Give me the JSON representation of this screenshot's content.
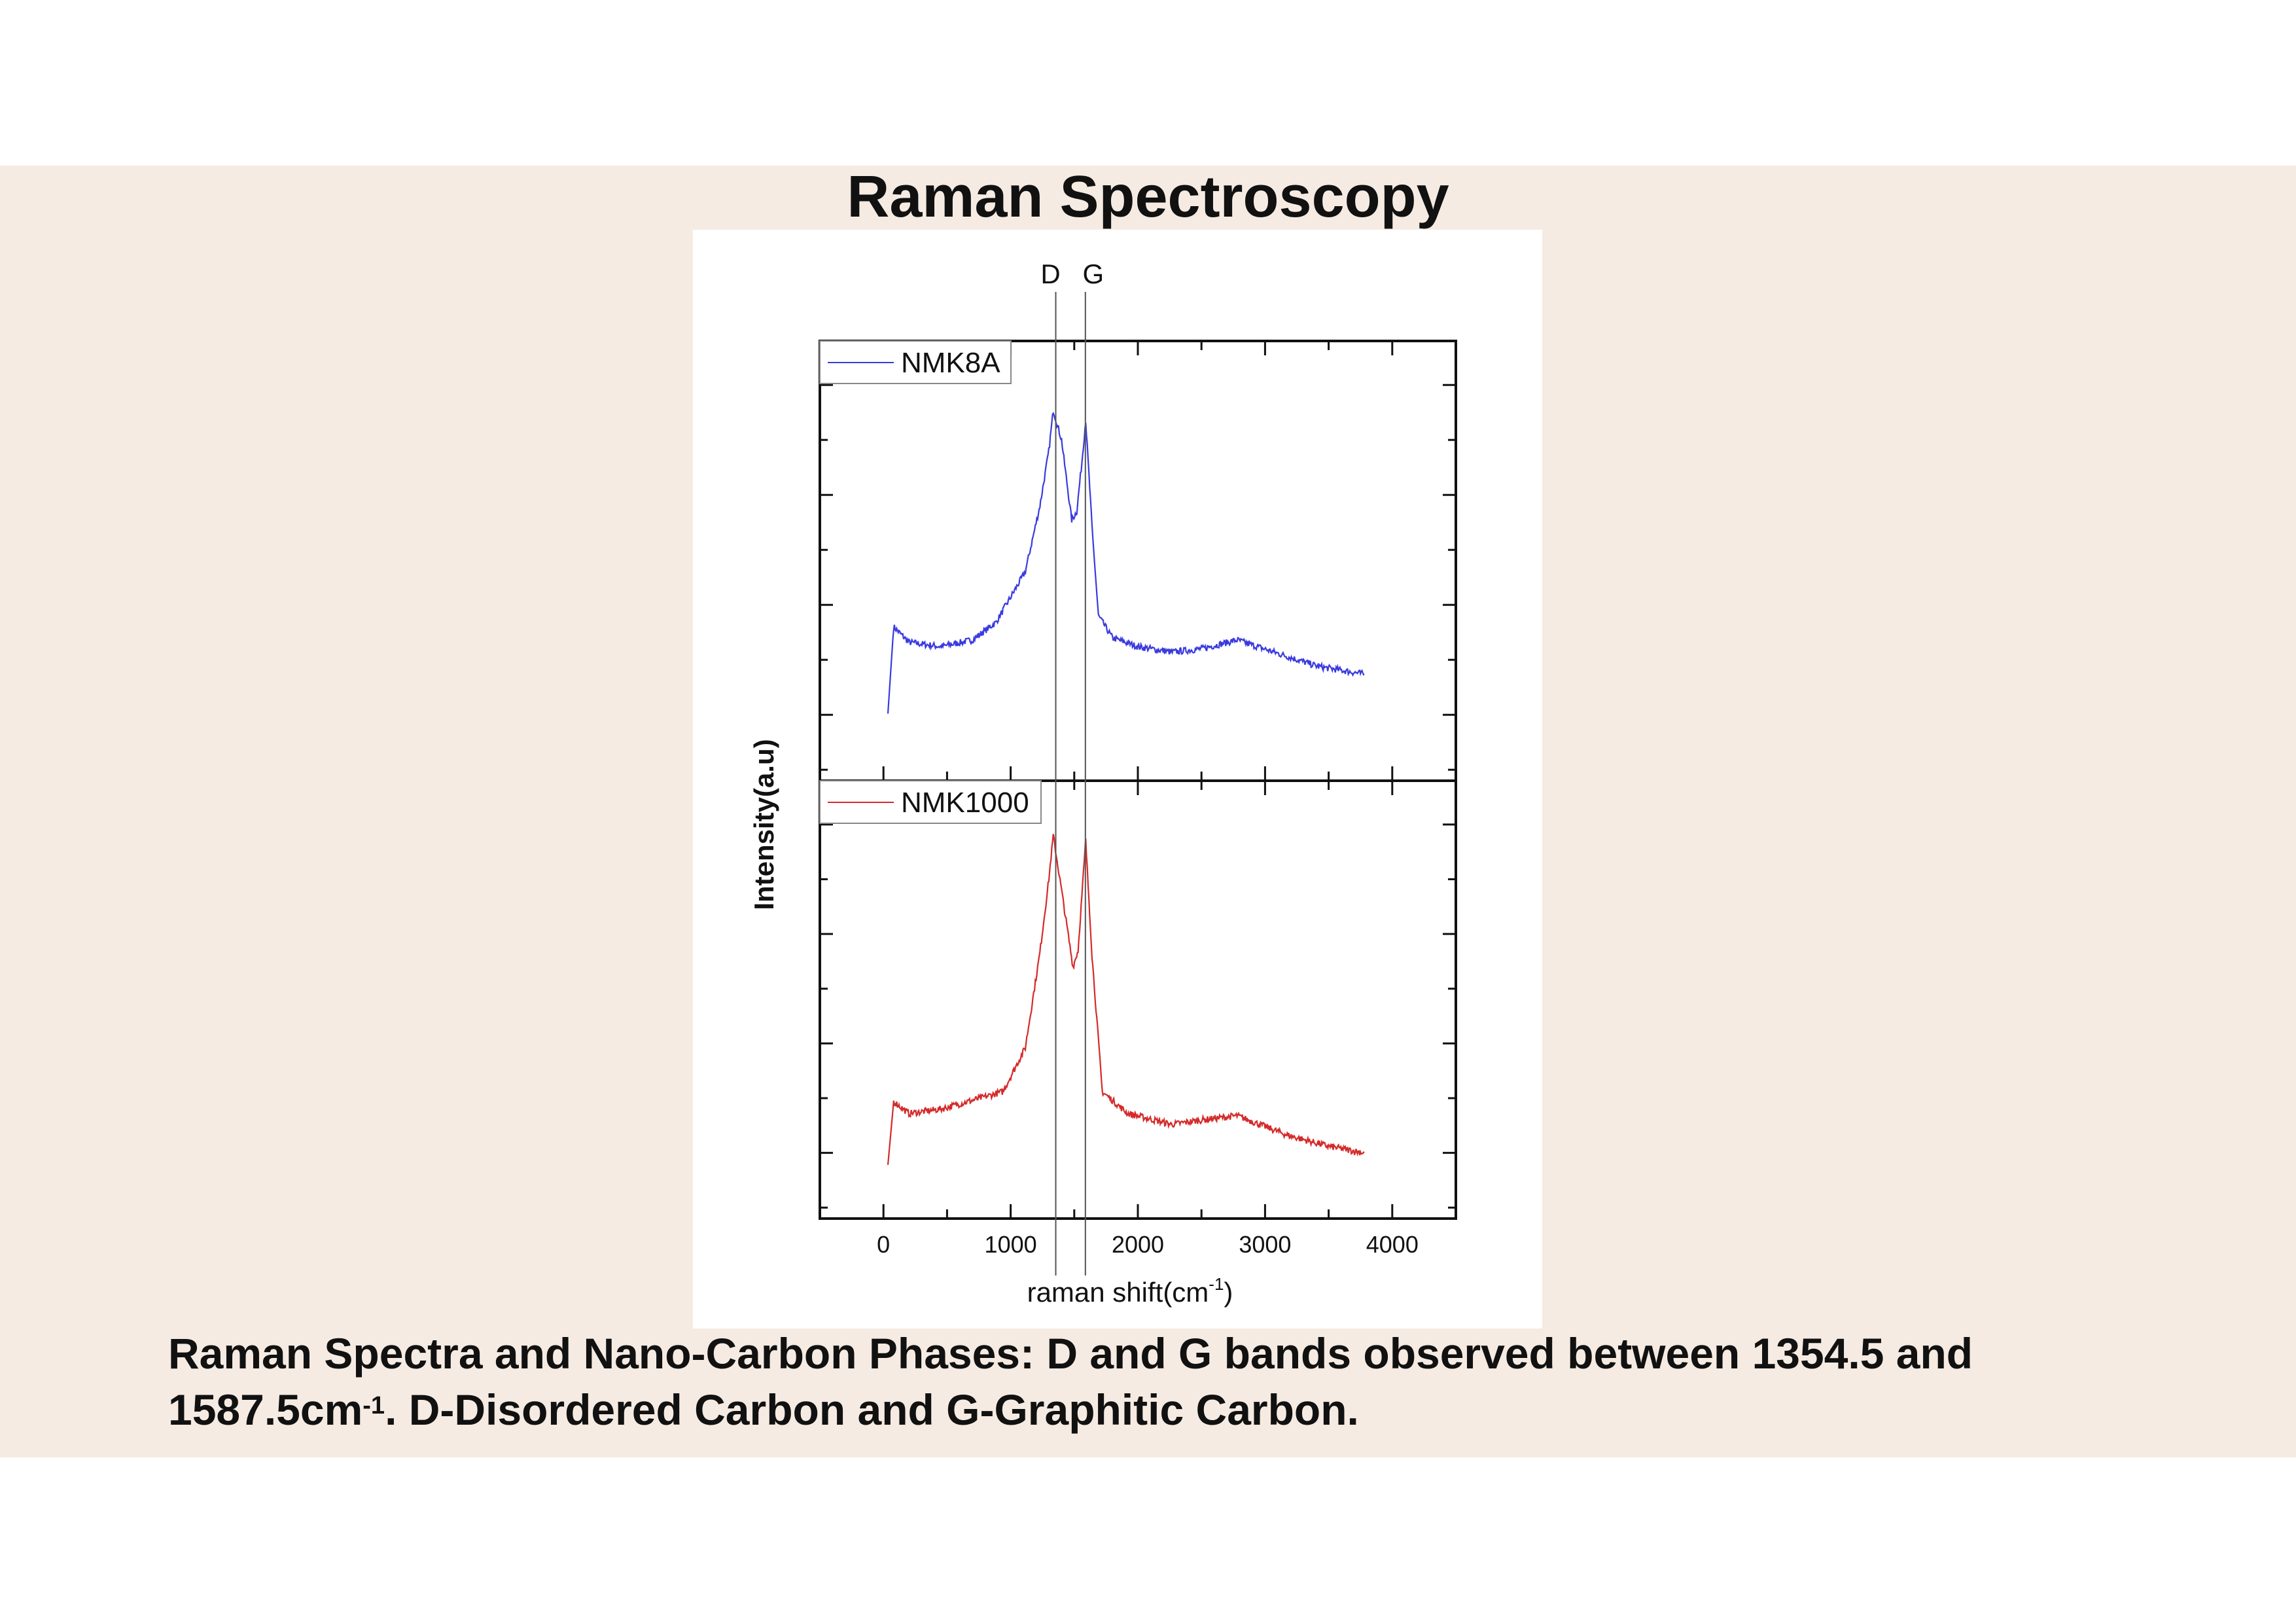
{
  "slide": {
    "title": "Raman Spectroscopy",
    "caption_line1": "Raman Spectra and Nano-Carbon Phases: D and G bands observed between 1354.5 and",
    "caption_line2_pre": "1587.5cm",
    "caption_line2_sup": "-1",
    "caption_line2_post": ". D-Disordered Carbon and G-Graphitic Carbon.",
    "background_color": "#f5ebe2"
  },
  "chart_data": {
    "type": "line",
    "xlabel_pre": "raman shift(cm",
    "xlabel_sup": "-1",
    "xlabel_post": ")",
    "ylabel": "Intensity(a.u)",
    "xlim": [
      -500,
      4500
    ],
    "xticks": [
      "0",
      "1000",
      "2000",
      "3000",
      "4000"
    ],
    "ylim": [
      0,
      4
    ],
    "y_tick_labels_shown": false,
    "legend_placement": "top-left",
    "markers": [
      {
        "label": "D",
        "x": 1354.5
      },
      {
        "label": "G",
        "x": 1587.5
      }
    ],
    "panels": [
      {
        "name": "NMK8A",
        "color": "#3a3adf",
        "x": [
          35,
          80,
          200,
          450,
          700,
          885,
          1115,
          1230,
          1300,
          1335,
          1400,
          1480,
          1520,
          1560,
          1590,
          1640,
          1690,
          1800,
          2000,
          2265,
          2500,
          2780,
          3070,
          3415,
          3780
        ],
        "y": [
          0.61,
          1.4,
          1.26,
          1.22,
          1.28,
          1.44,
          1.9,
          2.5,
          3.0,
          3.37,
          3.1,
          2.37,
          2.45,
          2.9,
          3.28,
          2.3,
          1.5,
          1.3,
          1.22,
          1.17,
          1.2,
          1.28,
          1.17,
          1.04,
          0.97
        ]
      },
      {
        "name": "NMK1000",
        "color": "#d42a2a",
        "x": [
          35,
          80,
          200,
          450,
          700,
          940,
          1115,
          1230,
          1300,
          1335,
          1400,
          1490,
          1530,
          1560,
          1590,
          1640,
          1720,
          1920,
          2265,
          2500,
          2780,
          3180,
          3500,
          3780
        ],
        "y": [
          0.49,
          1.07,
          0.96,
          1.0,
          1.08,
          1.16,
          1.56,
          2.43,
          3.1,
          3.5,
          3.0,
          2.3,
          2.45,
          2.95,
          3.45,
          2.4,
          1.16,
          0.96,
          0.86,
          0.9,
          0.94,
          0.76,
          0.66,
          0.6
        ]
      }
    ]
  }
}
